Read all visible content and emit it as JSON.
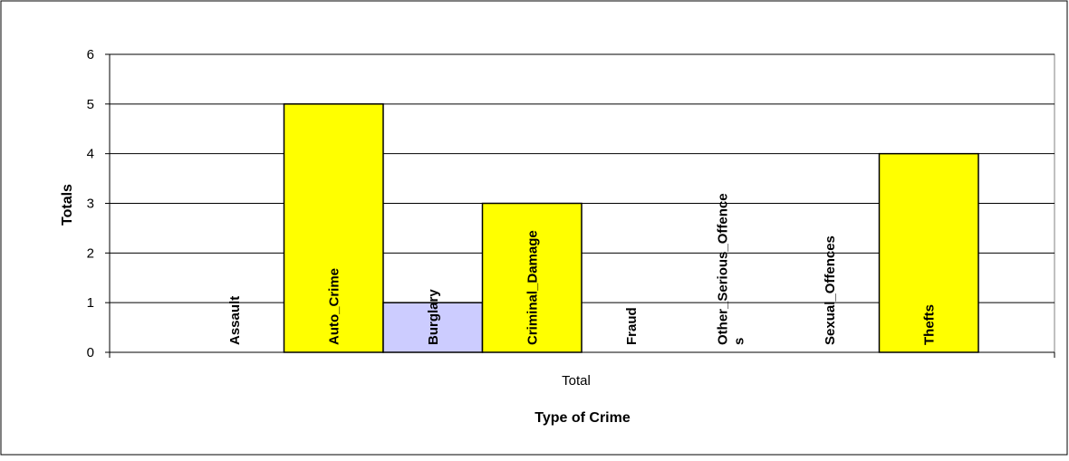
{
  "chart_data": {
    "type": "bar",
    "categories": [
      "Assault",
      "Auto_Crime",
      "Burglary",
      "Criminal_Damage",
      "Fraud",
      "Other_Serious_Offences",
      "Sexual_Offences",
      "Thefts"
    ],
    "category_label_lines": [
      [
        "Assault"
      ],
      [
        "Auto_Crime"
      ],
      [
        "Burglary"
      ],
      [
        "Criminal_Damage"
      ],
      [
        "Fraud"
      ],
      [
        "Other_Serious_Offence",
        "s"
      ],
      [
        "Sexual_Offences"
      ],
      [
        "Thefts"
      ]
    ],
    "values": [
      0,
      5,
      1,
      3,
      0,
      0,
      0,
      4
    ],
    "bar_colors": [
      "#FFFF00",
      "#FFFF00",
      "#CCCCFF",
      "#FFFF00",
      "#FFFF00",
      "#FFFF00",
      "#FFFF00",
      "#FFFF00"
    ],
    "group_label": "Total",
    "xlabel": "Type of Crime",
    "ylabel": "Totals",
    "ylim": [
      0,
      6
    ],
    "yticks": [
      "0",
      "1",
      "2",
      "3",
      "4",
      "5",
      "6"
    ],
    "grid": true,
    "legend": "none"
  }
}
